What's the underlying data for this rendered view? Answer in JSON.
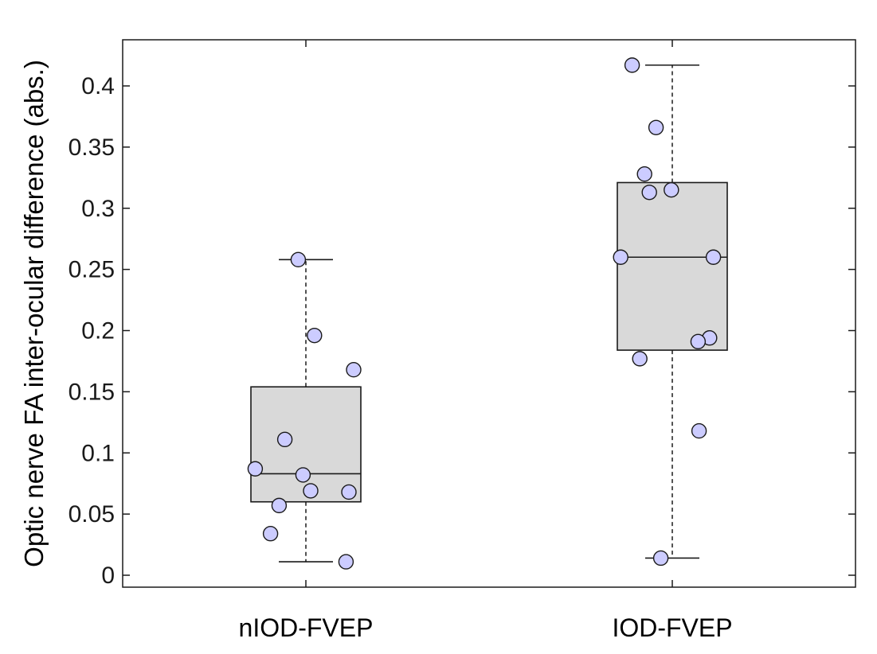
{
  "chart_data": {
    "type": "box",
    "ylabel": "Optic nerve FA inter-ocular difference (abs.)",
    "xlabel": "",
    "ylim": [
      -0.01,
      0.44
    ],
    "yticks": [
      {
        "value": 0,
        "label": "0"
      },
      {
        "value": 0.05,
        "label": "0.05"
      },
      {
        "value": 0.1,
        "label": "0.1"
      },
      {
        "value": 0.15,
        "label": "0.15"
      },
      {
        "value": 0.2,
        "label": "0.2"
      },
      {
        "value": 0.25,
        "label": "0.25"
      },
      {
        "value": 0.3,
        "label": "0.3"
      },
      {
        "value": 0.35,
        "label": "0.35"
      },
      {
        "value": 0.4,
        "label": "0.4"
      }
    ],
    "categories": [
      "nIOD-FVEP",
      "IOD-FVEP"
    ],
    "boxes": [
      {
        "category": "nIOD-FVEP",
        "whisker_low": 0.011,
        "q1": 0.06,
        "median": 0.083,
        "q3": 0.154,
        "whisker_high": 0.258
      },
      {
        "category": "IOD-FVEP",
        "whisker_low": 0.014,
        "q1": 0.184,
        "median": 0.26,
        "q3": 0.321,
        "whisker_high": 0.417
      }
    ],
    "points": [
      {
        "category": "nIOD-FVEP",
        "values": [
          0.258,
          0.196,
          0.168,
          0.111,
          0.087,
          0.082,
          0.069,
          0.068,
          0.057,
          0.034,
          0.011
        ],
        "jitter": [
          -0.08,
          0.09,
          0.5,
          -0.22,
          -0.53,
          -0.03,
          0.05,
          0.45,
          -0.28,
          -0.37,
          0.42
        ]
      },
      {
        "category": "IOD-FVEP",
        "values": [
          0.417,
          0.366,
          0.328,
          0.315,
          0.313,
          0.26,
          0.26,
          0.194,
          0.191,
          0.177,
          0.118,
          0.014
        ],
        "jitter": [
          -0.42,
          -0.17,
          -0.29,
          -0.01,
          -0.24,
          -0.54,
          0.43,
          0.39,
          0.27,
          -0.34,
          0.28,
          -0.12
        ]
      }
    ],
    "grid": false,
    "colors": {
      "box_fill": "#d9d9d9",
      "box_stroke": "#1a1a1a",
      "point_fill": "#ccccff",
      "point_stroke": "#1a1a1a"
    }
  }
}
